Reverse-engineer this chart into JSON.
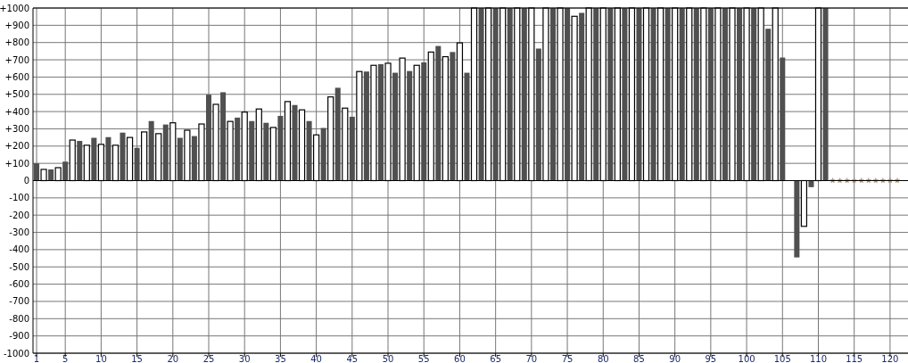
{
  "chart_data": {
    "type": "bar",
    "x": [
      1,
      2,
      3,
      4,
      5,
      6,
      7,
      8,
      9,
      10,
      11,
      12,
      13,
      14,
      15,
      16,
      17,
      18,
      19,
      20,
      21,
      22,
      23,
      24,
      25,
      26,
      27,
      28,
      29,
      30,
      31,
      32,
      33,
      34,
      35,
      36,
      37,
      38,
      39,
      40,
      41,
      42,
      43,
      44,
      45,
      46,
      47,
      48,
      49,
      50,
      51,
      52,
      53,
      54,
      55,
      56,
      57,
      58,
      59,
      60,
      61,
      62,
      63,
      64,
      65,
      66,
      67,
      68,
      69,
      70,
      71,
      72,
      73,
      74,
      75,
      76,
      77,
      78,
      79,
      80,
      81,
      82,
      83,
      84,
      85,
      86,
      87,
      88,
      89,
      90,
      91,
      92,
      93,
      94,
      95,
      96,
      97,
      98,
      99,
      100,
      101,
      102,
      103,
      104,
      105,
      107,
      108,
      109,
      110,
      111
    ],
    "series": [
      {
        "colors": [
          "#505050",
          "#ffffff",
          "#505050",
          "#ffffff",
          "#505050",
          "#ffffff",
          "#505050",
          "#ffffff",
          "#505050",
          "#ffffff",
          "#505050",
          "#ffffff",
          "#505050",
          "#ffffff",
          "#505050",
          "#ffffff",
          "#505050",
          "#ffffff",
          "#505050",
          "#ffffff",
          "#505050",
          "#ffffff",
          "#505050",
          "#ffffff",
          "#505050",
          "#ffffff",
          "#505050",
          "#ffffff",
          "#505050",
          "#ffffff",
          "#505050",
          "#ffffff",
          "#505050",
          "#ffffff",
          "#505050",
          "#ffffff",
          "#505050",
          "#ffffff",
          "#505050",
          "#ffffff",
          "#505050",
          "#ffffff",
          "#505050",
          "#ffffff",
          "#505050",
          "#ffffff",
          "#505050",
          "#ffffff",
          "#505050",
          "#ffffff",
          "#505050",
          "#ffffff",
          "#505050",
          "#ffffff",
          "#505050",
          "#ffffff",
          "#505050",
          "#ffffff",
          "#505050",
          "#ffffff",
          "#505050",
          "#ffffff",
          "#505050",
          "#ffffff",
          "#505050",
          "#ffffff",
          "#505050",
          "#ffffff",
          "#505050",
          "#ffffff",
          "#505050",
          "#ffffff",
          "#505050",
          "#ffffff",
          "#505050",
          "#ffffff",
          "#505050",
          "#ffffff",
          "#505050",
          "#ffffff",
          "#505050",
          "#ffffff",
          "#505050",
          "#ffffff",
          "#505050",
          "#ffffff",
          "#505050",
          "#ffffff",
          "#505050",
          "#ffffff",
          "#505050",
          "#ffffff",
          "#505050",
          "#ffffff",
          "#505050",
          "#ffffff",
          "#505050",
          "#ffffff",
          "#505050",
          "#ffffff",
          "#505050",
          "#ffffff",
          "#505050",
          "#ffffff",
          "#505050",
          "#505050",
          "#ffffff",
          "#505050",
          "#ffffff",
          "#505050"
        ],
        "values": [
          100,
          65,
          65,
          75,
          110,
          235,
          230,
          205,
          248,
          210,
          252,
          205,
          278,
          250,
          190,
          282,
          345,
          272,
          325,
          335,
          248,
          292,
          258,
          328,
          498,
          442,
          512,
          343,
          365,
          397,
          345,
          415,
          335,
          308,
          375,
          458,
          438,
          410,
          345,
          265,
          305,
          485,
          538,
          420,
          370,
          632,
          632,
          668,
          675,
          680,
          625,
          710,
          635,
          668,
          685,
          745,
          780,
          718,
          745,
          798,
          625,
          1000,
          1000,
          1000,
          1000,
          1000,
          1000,
          1000,
          1000,
          1000,
          765,
          1000,
          1000,
          1000,
          1000,
          952,
          972,
          1000,
          1000,
          1000,
          1000,
          1000,
          1000,
          1000,
          1000,
          1000,
          1000,
          1000,
          1000,
          1000,
          1000,
          1000,
          1000,
          1000,
          1000,
          1000,
          1000,
          1000,
          1000,
          1000,
          1000,
          1000,
          880,
          1000,
          713,
          -445,
          -265,
          -38,
          1000,
          1000
        ]
      },
      {
        "type": "scatter",
        "marker": "star",
        "color": "#8899aa",
        "x": [
          112,
          113,
          114,
          115,
          116,
          117,
          118,
          119,
          120,
          121
        ],
        "values": [
          0,
          0,
          0,
          0,
          0,
          0,
          0,
          0,
          0,
          0
        ]
      }
    ],
    "xlim": [
      0.5,
      122.5
    ],
    "xticks": [
      1,
      5,
      10,
      15,
      20,
      25,
      30,
      35,
      40,
      45,
      50,
      55,
      60,
      65,
      70,
      75,
      80,
      85,
      90,
      95,
      100,
      105,
      110,
      115,
      120
    ],
    "ylim": [
      -1000,
      1000
    ],
    "yticks": [
      -1000,
      -900,
      -800,
      -700,
      -600,
      -500,
      -400,
      -300,
      -200,
      -100,
      0,
      {
        "value": 100,
        "label": "+100"
      },
      {
        "value": 200,
        "label": "+200"
      },
      {
        "value": 300,
        "label": "+300"
      },
      {
        "value": 400,
        "label": "+400"
      },
      {
        "value": 500,
        "label": "+500"
      },
      {
        "value": 600,
        "label": "+600"
      },
      {
        "value": 700,
        "label": "+700"
      },
      {
        "value": 800,
        "label": "+800"
      },
      {
        "value": 900,
        "label": "+900"
      },
      {
        "value": 1000,
        "label": "+1000"
      }
    ],
    "grid": true
  }
}
